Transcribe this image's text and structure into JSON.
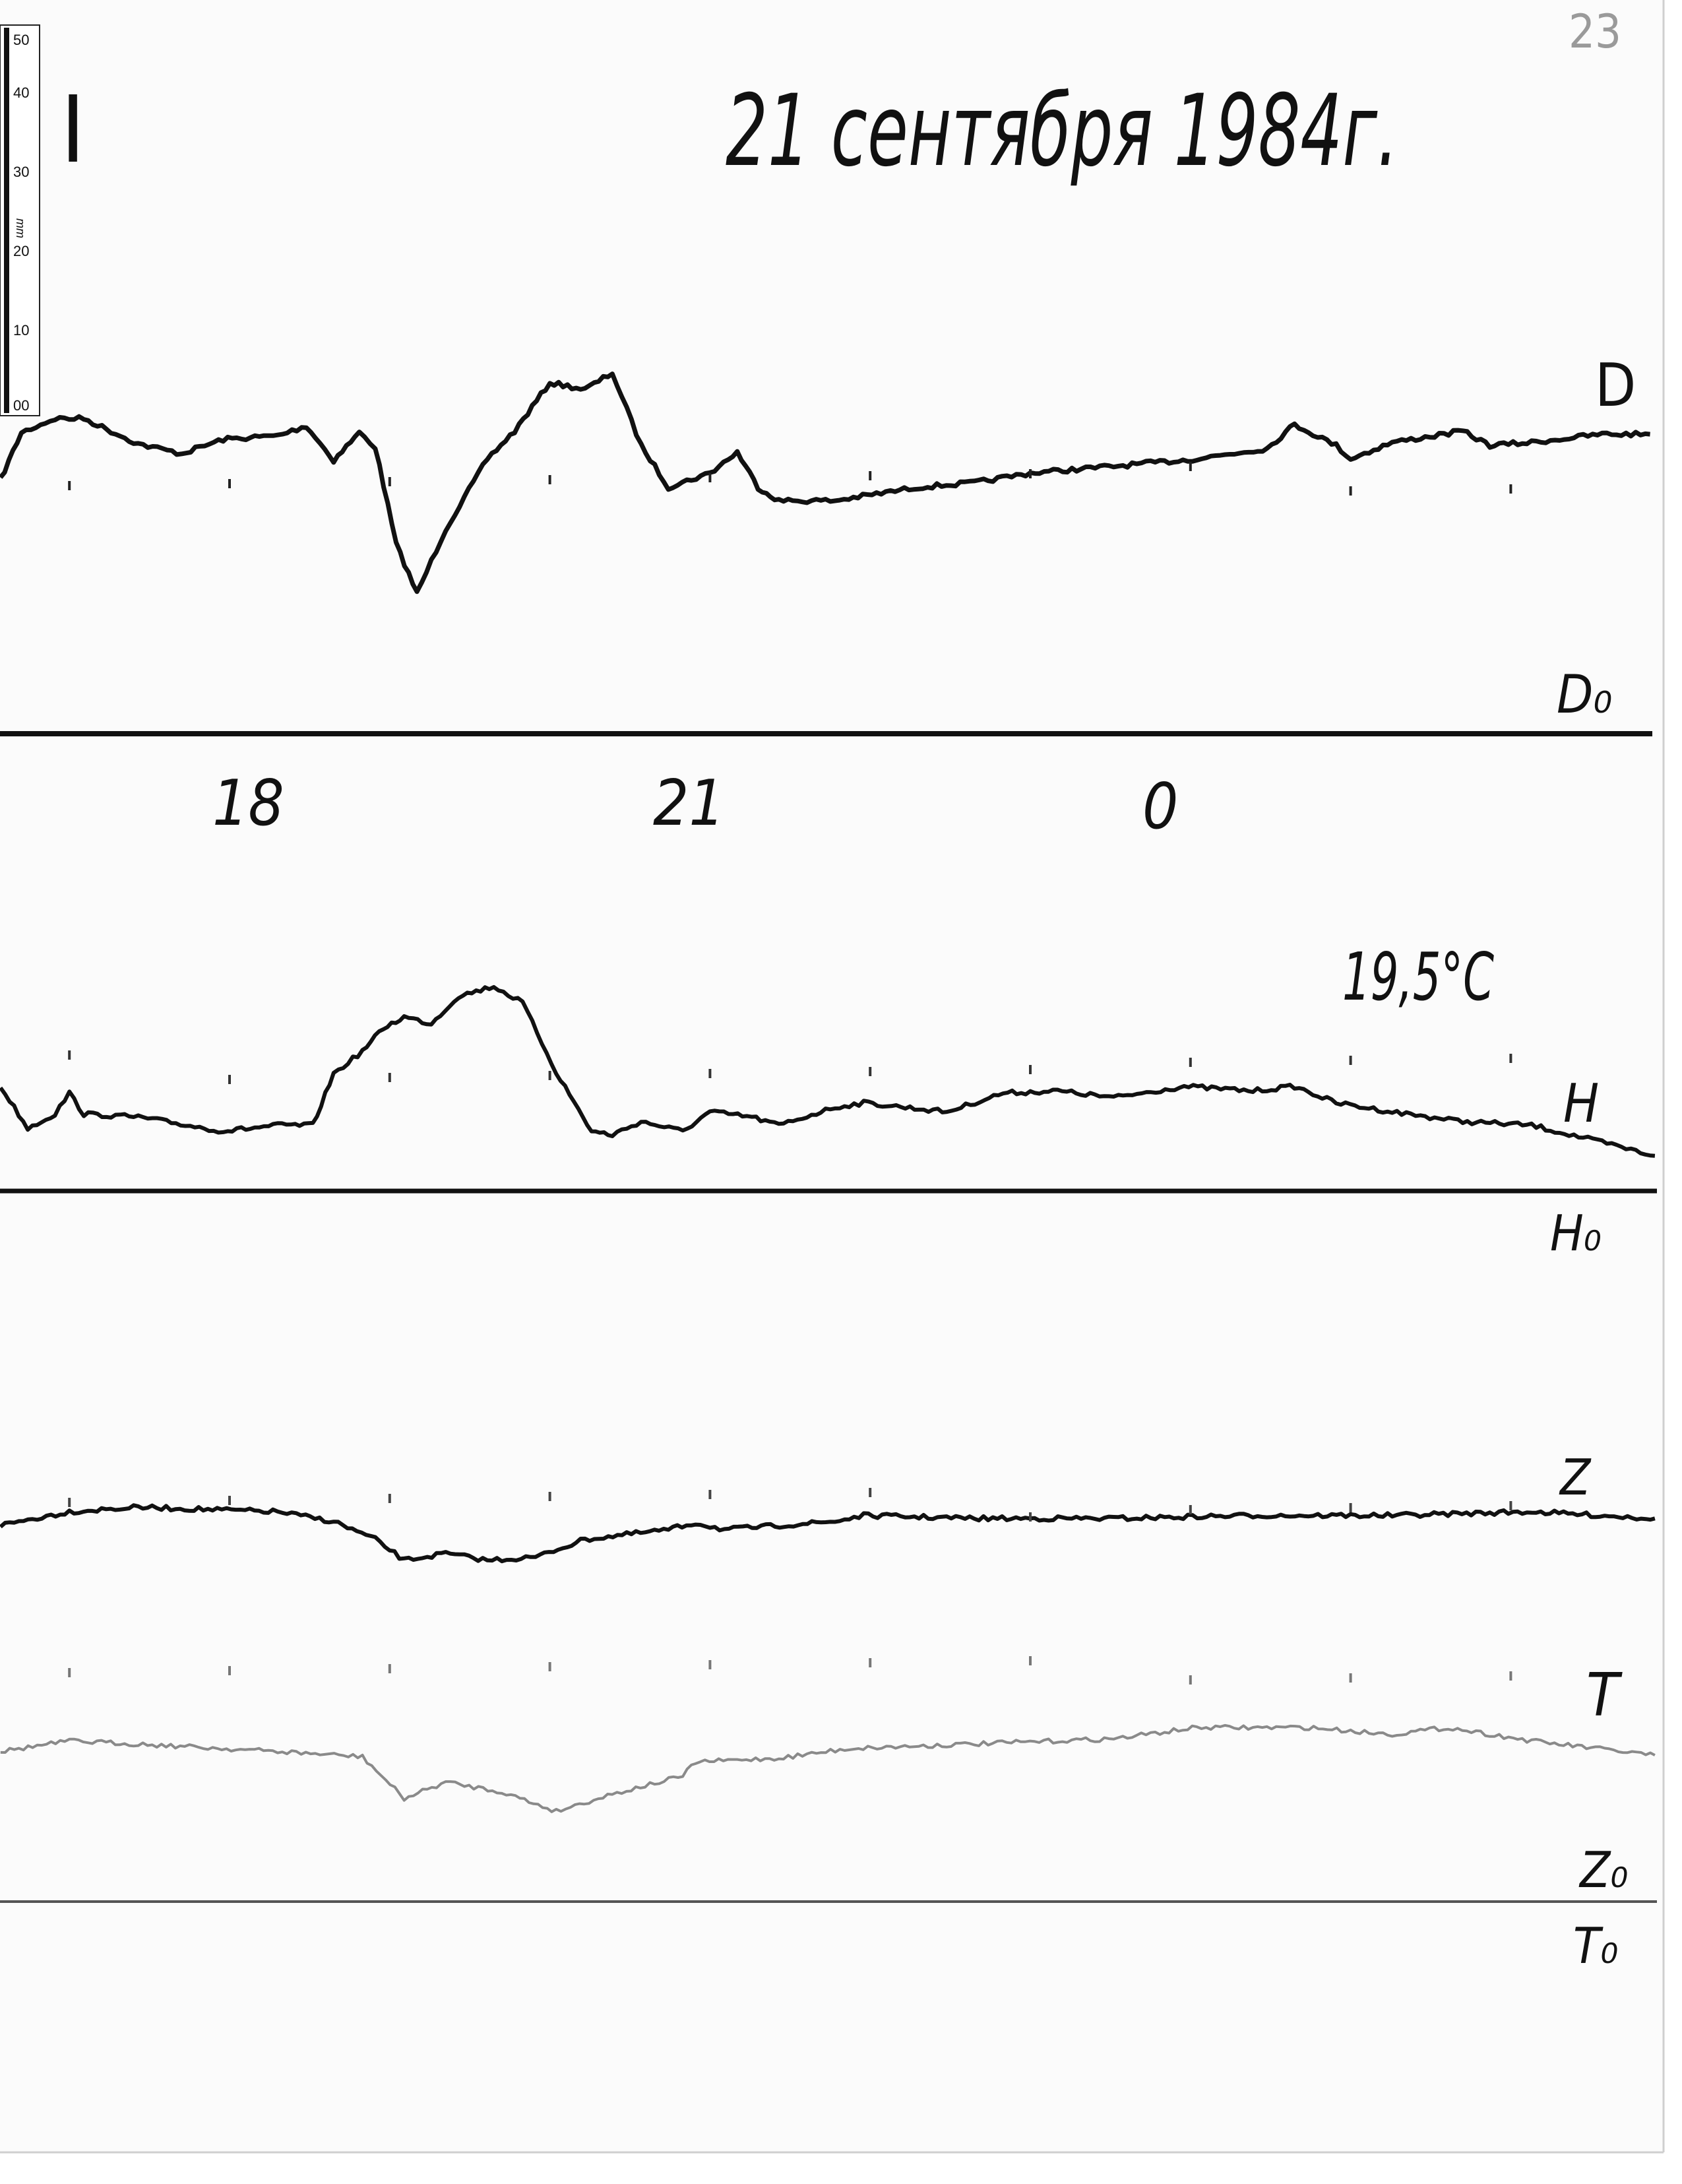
{
  "page": {
    "title": "21 сентября 1984г.",
    "section_mark": "I",
    "page_number": "23",
    "temperature_note": "19,5°C",
    "ruler": {
      "unit": "mm",
      "ticks": [
        "50",
        "40",
        "30",
        "20",
        "10",
        "00"
      ]
    },
    "colors": {
      "paper": "#fbfbfb",
      "ink": "#111111",
      "trace_T": "#8a8a8a",
      "page_number": "#9a9a9a"
    }
  },
  "chart_data": {
    "type": "line",
    "title": "21 сентября 1984г.",
    "x_unit": "hour",
    "x_tick_labels": [
      {
        "hour": 18,
        "label": "18"
      },
      {
        "hour": 21,
        "label": "21"
      },
      {
        "hour": 0,
        "label": "0"
      }
    ],
    "hour_marks": [
      17,
      18,
      19,
      20,
      21,
      22,
      23,
      0,
      1,
      2
    ],
    "y_unit": "mm",
    "grid": false,
    "series": [
      {
        "name": "D",
        "baseline_label": "D₀",
        "color": "#111111",
        "points": [
          [
            16.57,
            34.0
          ],
          [
            16.7,
            40.3
          ],
          [
            16.91,
            42.2
          ],
          [
            17.09,
            42.2
          ],
          [
            17.43,
            38.8
          ],
          [
            17.7,
            37.5
          ],
          [
            17.96,
            39.4
          ],
          [
            18.3,
            39.9
          ],
          [
            18.48,
            41.2
          ],
          [
            18.65,
            36.6
          ],
          [
            18.81,
            40.3
          ],
          [
            18.91,
            38.4
          ],
          [
            19.04,
            25.4
          ],
          [
            19.17,
            18.8
          ],
          [
            19.35,
            27.4
          ],
          [
            19.61,
            36.8
          ],
          [
            19.78,
            40.5
          ],
          [
            20.0,
            47.0
          ],
          [
            20.22,
            46.1
          ],
          [
            20.39,
            48.3
          ],
          [
            20.57,
            38.6
          ],
          [
            20.74,
            33.0
          ],
          [
            21.0,
            34.9
          ],
          [
            21.17,
            37.7
          ],
          [
            21.3,
            33.0
          ],
          [
            21.43,
            31.2
          ],
          [
            21.78,
            31.2
          ],
          [
            22.04,
            32.1
          ],
          [
            22.3,
            33.0
          ],
          [
            22.65,
            33.6
          ],
          [
            23.0,
            34.9
          ],
          [
            23.52,
            35.8
          ],
          [
            0.04,
            36.8
          ],
          [
            0.48,
            38.2
          ],
          [
            0.65,
            41.4
          ],
          [
            0.91,
            38.6
          ],
          [
            1.0,
            36.8
          ],
          [
            1.26,
            39.0
          ],
          [
            1.7,
            40.5
          ],
          [
            1.87,
            38.6
          ],
          [
            2.13,
            39.0
          ],
          [
            2.57,
            40.1
          ],
          [
            2.87,
            40.1
          ]
        ]
      },
      {
        "name": "H",
        "baseline_label": "H₀",
        "color": "#111111",
        "points": [
          [
            16.57,
            14.0
          ],
          [
            16.74,
            8.4
          ],
          [
            16.91,
            10.3
          ],
          [
            17.0,
            13.1
          ],
          [
            17.09,
            10.3
          ],
          [
            17.43,
            9.9
          ],
          [
            17.96,
            8.0
          ],
          [
            18.3,
            8.8
          ],
          [
            18.52,
            8.8
          ],
          [
            18.65,
            15.7
          ],
          [
            18.83,
            18.7
          ],
          [
            18.96,
            21.8
          ],
          [
            19.09,
            23.3
          ],
          [
            19.26,
            22.4
          ],
          [
            19.43,
            26.1
          ],
          [
            19.65,
            27.4
          ],
          [
            19.83,
            25.2
          ],
          [
            20.04,
            15.9
          ],
          [
            20.26,
            8.0
          ],
          [
            20.39,
            7.5
          ],
          [
            20.57,
            9.3
          ],
          [
            20.83,
            8.0
          ],
          [
            21.0,
            10.6
          ],
          [
            21.26,
            9.9
          ],
          [
            21.43,
            8.8
          ],
          [
            21.78,
            11.2
          ],
          [
            21.96,
            11.8
          ],
          [
            22.48,
            10.6
          ],
          [
            22.83,
            13.1
          ],
          [
            23.17,
            13.4
          ],
          [
            23.52,
            12.5
          ],
          [
            23.96,
            14.0
          ],
          [
            0.39,
            13.4
          ],
          [
            0.65,
            14.0
          ],
          [
            0.91,
            11.8
          ],
          [
            1.26,
            10.6
          ],
          [
            1.7,
            9.3
          ],
          [
            2.13,
            8.8
          ],
          [
            2.57,
            6.5
          ],
          [
            2.9,
            4.7
          ]
        ]
      },
      {
        "name": "Z",
        "baseline_label": "Z₀",
        "color": "#111111",
        "points": [
          [
            16.57,
            50.4
          ],
          [
            17.0,
            52.2
          ],
          [
            17.43,
            52.8
          ],
          [
            18.3,
            52.2
          ],
          [
            18.65,
            50.9
          ],
          [
            18.91,
            48.5
          ],
          [
            19.09,
            45.7
          ],
          [
            19.35,
            46.6
          ],
          [
            19.61,
            45.7
          ],
          [
            19.91,
            46.1
          ],
          [
            20.22,
            48.5
          ],
          [
            20.74,
            49.8
          ],
          [
            20.91,
            50.7
          ],
          [
            21.09,
            49.8
          ],
          [
            21.78,
            50.9
          ],
          [
            21.96,
            51.7
          ],
          [
            22.65,
            51.3
          ],
          [
            23.52,
            51.3
          ],
          [
            0.39,
            51.7
          ],
          [
            1.26,
            51.7
          ],
          [
            2.13,
            52.2
          ],
          [
            2.9,
            51.3
          ]
        ]
      },
      {
        "name": "T",
        "baseline_label": "T₀",
        "color": "#8a8a8a",
        "points": [
          [
            16.57,
            20.1
          ],
          [
            17.0,
            21.5
          ],
          [
            17.43,
            21.1
          ],
          [
            18.3,
            20.1
          ],
          [
            18.83,
            19.4
          ],
          [
            19.09,
            13.8
          ],
          [
            19.35,
            16.0
          ],
          [
            19.7,
            14.7
          ],
          [
            20.04,
            12.1
          ],
          [
            20.39,
            14.4
          ],
          [
            20.83,
            16.8
          ],
          [
            20.91,
            18.7
          ],
          [
            21.43,
            19.2
          ],
          [
            21.87,
            20.5
          ],
          [
            22.65,
            21.1
          ],
          [
            23.52,
            21.8
          ],
          [
            0.04,
            23.3
          ],
          [
            0.74,
            23.3
          ],
          [
            1.26,
            22.4
          ],
          [
            1.61,
            23.3
          ],
          [
            2.13,
            21.5
          ],
          [
            2.9,
            19.6
          ]
        ]
      }
    ]
  }
}
